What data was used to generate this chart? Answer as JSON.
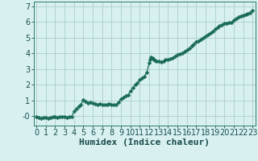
{
  "xlabel": "Humidex (Indice chaleur)",
  "ylabel": "",
  "background_color": "#d8f0f0",
  "plot_bg_color": "#d8f0f0",
  "grid_color": "#aacece",
  "line_color": "#1a6b5a",
  "marker_color": "#1a6b5a",
  "xlim": [
    -0.3,
    23.3
  ],
  "ylim": [
    -0.6,
    7.3
  ],
  "xticks": [
    0,
    1,
    2,
    3,
    4,
    5,
    6,
    7,
    8,
    9,
    10,
    11,
    12,
    13,
    14,
    15,
    16,
    17,
    18,
    19,
    20,
    21,
    22,
    23
  ],
  "yticks": [
    0,
    1,
    2,
    3,
    4,
    5,
    6,
    7
  ],
  "x": [
    0.0,
    0.25,
    0.5,
    0.75,
    1.0,
    1.25,
    1.5,
    1.75,
    2.0,
    2.25,
    2.5,
    2.75,
    3.0,
    3.25,
    3.5,
    3.75,
    4.0,
    4.25,
    4.5,
    4.75,
    5.0,
    5.25,
    5.5,
    5.75,
    6.0,
    6.25,
    6.5,
    6.75,
    7.0,
    7.25,
    7.5,
    7.75,
    8.0,
    8.25,
    8.5,
    8.75,
    9.0,
    9.25,
    9.5,
    9.75,
    10.0,
    10.25,
    10.5,
    10.75,
    11.0,
    11.25,
    11.5,
    11.75,
    12.0,
    12.1,
    12.2,
    12.3,
    12.4,
    12.5,
    12.6,
    12.75,
    13.0,
    13.25,
    13.5,
    13.75,
    14.0,
    14.25,
    14.5,
    14.75,
    15.0,
    15.25,
    15.5,
    15.75,
    16.0,
    16.25,
    16.5,
    16.75,
    17.0,
    17.25,
    17.5,
    17.75,
    18.0,
    18.25,
    18.5,
    18.75,
    19.0,
    19.25,
    19.5,
    19.75,
    20.0,
    20.25,
    20.5,
    20.75,
    21.0,
    21.25,
    21.5,
    21.75,
    22.0,
    22.25,
    22.5,
    22.75,
    23.0
  ],
  "y": [
    -0.05,
    -0.1,
    -0.12,
    -0.08,
    -0.1,
    -0.12,
    -0.08,
    -0.05,
    -0.05,
    -0.08,
    -0.05,
    -0.03,
    -0.05,
    -0.08,
    -0.05,
    -0.05,
    0.3,
    0.5,
    0.65,
    0.75,
    1.05,
    0.95,
    0.85,
    0.9,
    0.85,
    0.8,
    0.75,
    0.78,
    0.75,
    0.72,
    0.75,
    0.8,
    0.75,
    0.72,
    0.75,
    0.9,
    1.1,
    1.2,
    1.3,
    1.35,
    1.6,
    1.8,
    2.0,
    2.1,
    2.3,
    2.45,
    2.55,
    2.8,
    3.4,
    3.6,
    3.75,
    3.7,
    3.65,
    3.6,
    3.55,
    3.5,
    3.5,
    3.45,
    3.5,
    3.6,
    3.6,
    3.65,
    3.7,
    3.8,
    3.9,
    3.95,
    4.0,
    4.1,
    4.2,
    4.3,
    4.5,
    4.6,
    4.75,
    4.8,
    4.9,
    5.0,
    5.1,
    5.2,
    5.3,
    5.4,
    5.55,
    5.65,
    5.75,
    5.8,
    5.9,
    5.92,
    5.95,
    5.95,
    6.1,
    6.2,
    6.3,
    6.4,
    6.45,
    6.5,
    6.55,
    6.6,
    6.75
  ],
  "xlabel_fontsize": 8,
  "tick_fontsize": 7,
  "line_width": 0.9,
  "marker_size": 2.5,
  "ylabel_neg0": "-0"
}
